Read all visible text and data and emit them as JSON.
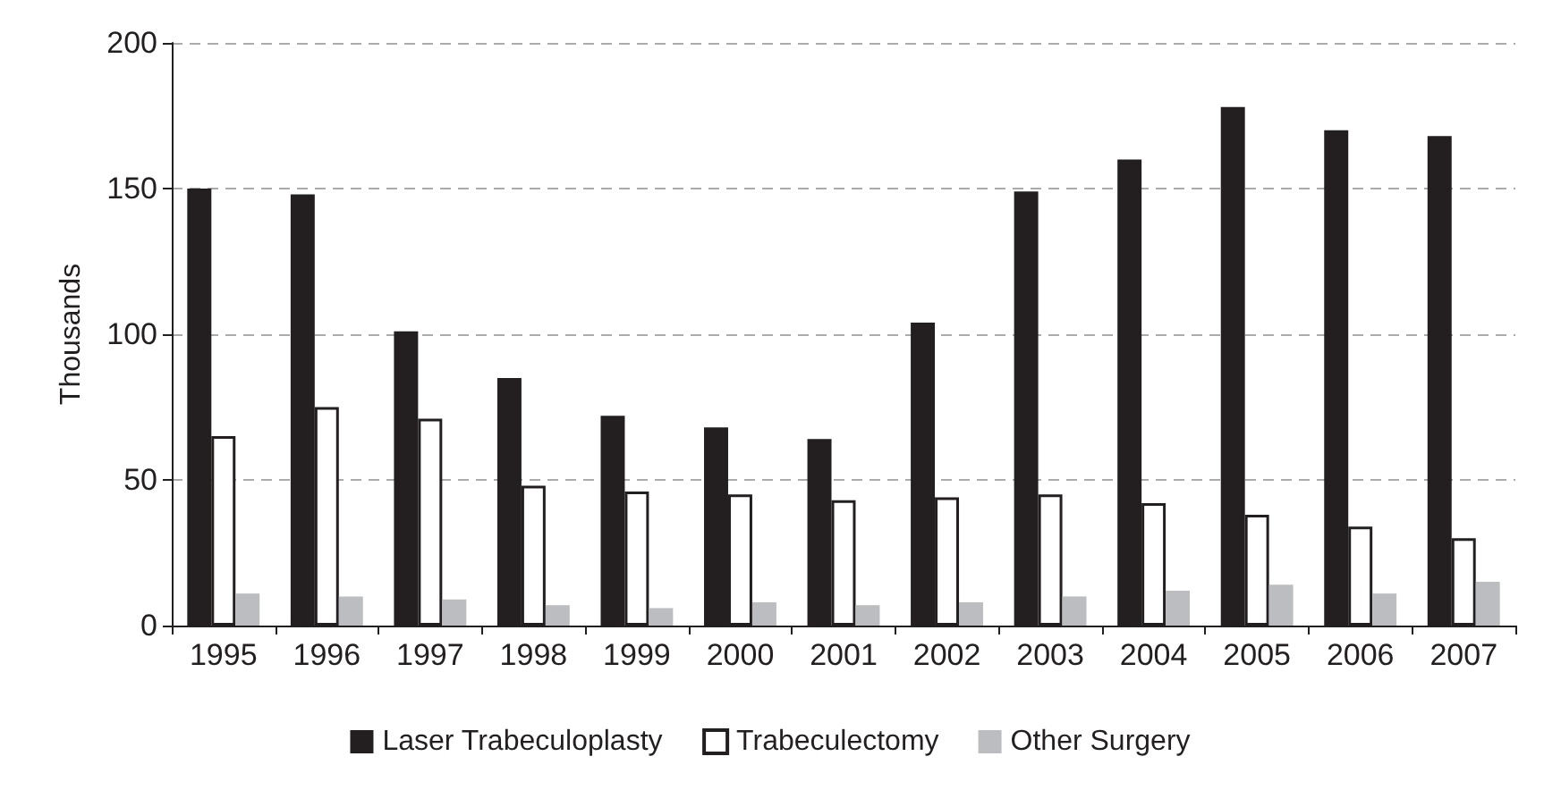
{
  "chart_data": {
    "type": "bar",
    "ylabel": "Thousands",
    "categories": [
      "1995",
      "1996",
      "1997",
      "1998",
      "1999",
      "2000",
      "2001",
      "2002",
      "2003",
      "2004",
      "2005",
      "2006",
      "2007"
    ],
    "series": [
      {
        "name": "Laser Trabeculoplasty",
        "color": "#231f20",
        "values": [
          150,
          148,
          101,
          85,
          72,
          68,
          64,
          104,
          149,
          160,
          178,
          170,
          168
        ]
      },
      {
        "name": "Trabeculectomy",
        "color": "#ffffff",
        "values": [
          65,
          75,
          71,
          48,
          46,
          45,
          43,
          44,
          45,
          42,
          38,
          34,
          30
        ]
      },
      {
        "name": "Other Surgery",
        "color": "#bcbdc0",
        "values": [
          11,
          10,
          9,
          7,
          6,
          8,
          7,
          8,
          10,
          12,
          14,
          11,
          15
        ]
      }
    ],
    "ylim": [
      0,
      200
    ],
    "yticks": [
      0,
      50,
      100,
      150,
      200
    ],
    "grid": "y",
    "legend": "bottom"
  }
}
